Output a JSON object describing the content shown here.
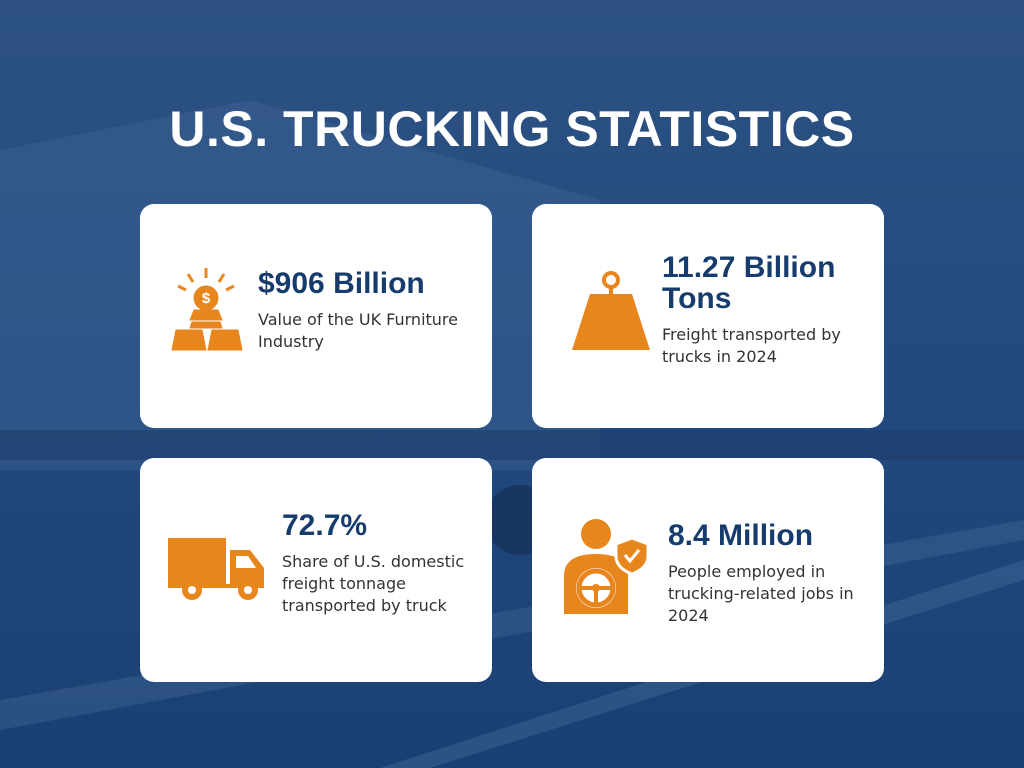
{
  "header": {
    "title": "U.S. TRUCKING STATISTICS"
  },
  "cards": [
    {
      "stat": "$906 Billion",
      "description": "Value of the UK Furniture Industry"
    },
    {
      "stat": "11.27 Billion Tons",
      "description": "Freight transported by trucks in 2024"
    },
    {
      "stat": "72.7%",
      "description": "Share of U.S. domestic freight tonnage transported by truck"
    },
    {
      "stat": "8.4 Million",
      "description": "People employed in trucking-related jobs in 2024"
    }
  ]
}
